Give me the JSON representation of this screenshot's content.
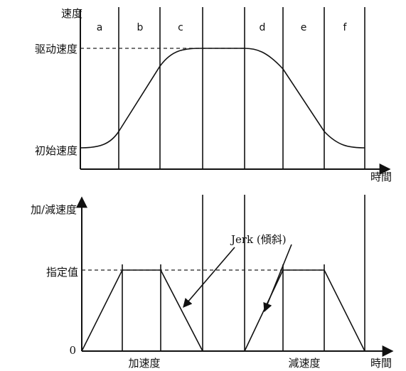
{
  "top_graph": {
    "y_axis_label": "速度",
    "drive_speed_label": "驱动速度",
    "initial_speed_label": "初始速度",
    "x_axis_label": "時間",
    "segments": [
      "a",
      "b",
      "c",
      "d",
      "e",
      "f"
    ]
  },
  "bottom_graph": {
    "y_axis_label": "加/減速度",
    "specified_value_label": "指定值",
    "zero_label": "0",
    "x_axis_label": "時間",
    "jerk_label": "Jerk (傾斜)",
    "accel_label": "加速度",
    "decel_label": "減速度"
  }
}
